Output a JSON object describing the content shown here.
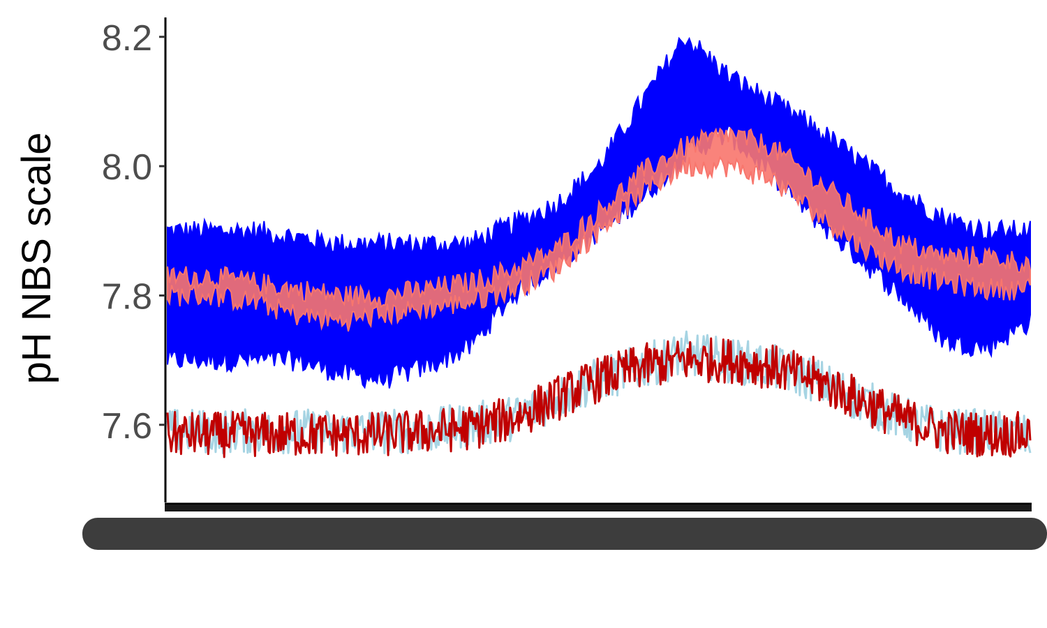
{
  "chart_data": {
    "type": "line",
    "title": "",
    "xlabel": "",
    "ylabel": "pH NBS scale",
    "ylim": [
      7.48,
      8.23
    ],
    "yticks": [
      {
        "value": 7.6,
        "label": "7.6"
      },
      {
        "value": 7.8,
        "label": "7.8"
      },
      {
        "value": 8.0,
        "label": "8.0"
      },
      {
        "value": 8.2,
        "label": "8.2"
      }
    ],
    "x_tick_labels_dense": "illegible overlapping x-axis tick labels",
    "x": [
      0,
      0.05,
      0.1,
      0.15,
      0.2,
      0.25,
      0.3,
      0.35,
      0.4,
      0.45,
      0.5,
      0.55,
      0.6,
      0.65,
      0.7,
      0.75,
      0.8,
      0.85,
      0.9,
      0.95,
      1.0
    ],
    "grid": false,
    "legend": "none",
    "series": [
      {
        "color": "#0000ff",
        "style": "band",
        "upper": [
          7.9,
          7.9,
          7.9,
          7.89,
          7.88,
          7.88,
          7.88,
          7.88,
          7.91,
          7.94,
          8.0,
          8.1,
          8.2,
          8.14,
          8.1,
          8.06,
          8.01,
          7.96,
          7.92,
          7.9,
          7.9
        ],
        "lower": [
          7.7,
          7.7,
          7.7,
          7.7,
          7.68,
          7.67,
          7.69,
          7.72,
          7.8,
          7.85,
          7.9,
          7.95,
          8.02,
          8.05,
          7.99,
          7.92,
          7.86,
          7.8,
          7.73,
          7.72,
          7.76
        ]
      },
      {
        "color": "#f8766d",
        "style": "band",
        "upper": [
          7.83,
          7.83,
          7.82,
          7.81,
          7.8,
          7.8,
          7.81,
          7.82,
          7.84,
          7.87,
          7.93,
          7.99,
          8.03,
          8.05,
          8.03,
          7.98,
          7.93,
          7.88,
          7.86,
          7.86,
          7.85
        ],
        "lower": [
          7.8,
          7.8,
          7.79,
          7.77,
          7.76,
          7.77,
          7.78,
          7.79,
          7.81,
          7.84,
          7.9,
          7.96,
          8.0,
          8.0,
          7.98,
          7.93,
          7.88,
          7.84,
          7.82,
          7.81,
          7.81
        ]
      },
      {
        "color": "#a6d4e3",
        "style": "noisy-line",
        "values": [
          7.59,
          7.59,
          7.59,
          7.59,
          7.59,
          7.59,
          7.59,
          7.6,
          7.61,
          7.64,
          7.67,
          7.69,
          7.71,
          7.7,
          7.69,
          7.67,
          7.64,
          7.61,
          7.59,
          7.59,
          7.58
        ],
        "amplitude": 0.035
      },
      {
        "color": "#c00000",
        "style": "noisy-line",
        "values": [
          7.585,
          7.585,
          7.585,
          7.585,
          7.585,
          7.585,
          7.59,
          7.595,
          7.61,
          7.64,
          7.67,
          7.69,
          7.7,
          7.7,
          7.69,
          7.67,
          7.64,
          7.61,
          7.59,
          7.585,
          7.585
        ],
        "amplitude": 0.035
      }
    ]
  }
}
